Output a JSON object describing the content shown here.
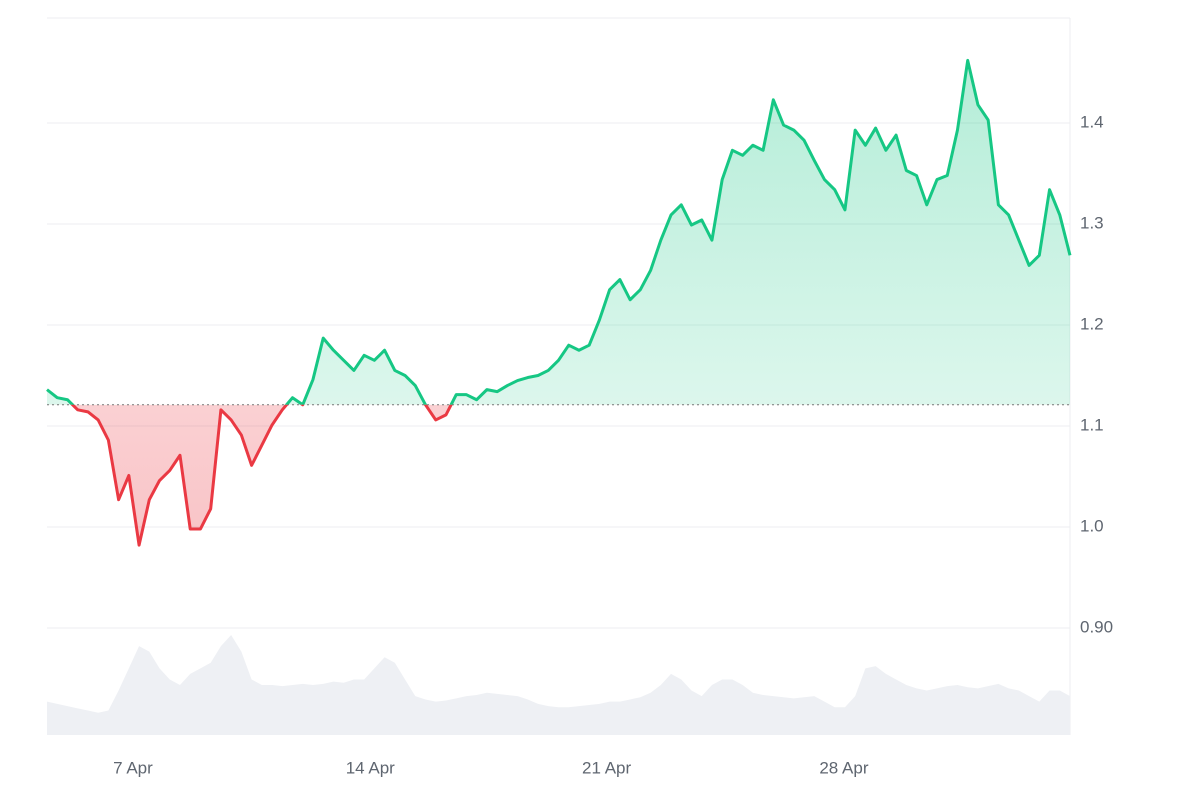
{
  "chart_data": {
    "type": "line",
    "xlim": [
      0,
      100
    ],
    "xticks": [
      {
        "value": 8.4,
        "label": "7 Apr"
      },
      {
        "value": 31.6,
        "label": "14 Apr"
      },
      {
        "value": 54.7,
        "label": "21 Apr"
      },
      {
        "value": 77.9,
        "label": "28 Apr"
      }
    ],
    "ylim": [
      0.794,
      1.504
    ],
    "yticks": [
      {
        "value": 0.9,
        "label": "0.90"
      },
      {
        "value": 1,
        "label": "1.0"
      },
      1.1,
      1.2,
      1.3,
      1.4
    ],
    "grid": true,
    "baseline": 1.121,
    "up_color": "#16c784",
    "down_color": "#ea3943",
    "values": [
      1.136,
      1.128,
      1.126,
      1.116,
      1.114,
      1.106,
      1.086,
      1.027,
      1.051,
      0.982,
      1.027,
      1.046,
      1.056,
      1.071,
      0.998,
      0.998,
      1.018,
      1.116,
      1.106,
      1.091,
      1.061,
      1.081,
      1.101,
      1.116,
      1.128,
      1.121,
      1.146,
      1.187,
      1.175,
      1.165,
      1.155,
      1.17,
      1.165,
      1.175,
      1.155,
      1.15,
      1.14,
      1.121,
      1.106,
      1.111,
      1.131,
      1.131,
      1.126,
      1.136,
      1.134,
      1.14,
      1.145,
      1.148,
      1.15,
      1.155,
      1.165,
      1.18,
      1.175,
      1.18,
      1.205,
      1.235,
      1.245,
      1.225,
      1.235,
      1.254,
      1.284,
      1.309,
      1.319,
      1.299,
      1.304,
      1.284,
      1.344,
      1.373,
      1.368,
      1.378,
      1.373,
      1.423,
      1.398,
      1.393,
      1.383,
      1.363,
      1.344,
      1.334,
      1.314,
      1.393,
      1.378,
      1.395,
      1.373,
      1.388,
      1.353,
      1.348,
      1.319,
      1.344,
      1.348,
      1.393,
      1.462,
      1.418,
      1.403,
      1.319,
      1.309,
      1.284,
      1.259,
      1.269,
      1.334,
      1.309,
      1.269
    ],
    "volume": {
      "color": "#eef0f4",
      "values": [
        30,
        28,
        26,
        24,
        22,
        20,
        22,
        40,
        60,
        80,
        75,
        60,
        50,
        45,
        55,
        60,
        65,
        80,
        90,
        75,
        50,
        45,
        45,
        44,
        45,
        46,
        45,
        46,
        48,
        47,
        50,
        50,
        60,
        70,
        65,
        50,
        35,
        32,
        30,
        31,
        33,
        35,
        36,
        38,
        37,
        36,
        35,
        32,
        28,
        26,
        25,
        25,
        26,
        27,
        28,
        30,
        30,
        32,
        34,
        38,
        45,
        55,
        50,
        40,
        35,
        45,
        50,
        50,
        45,
        38,
        36,
        35,
        34,
        33,
        34,
        35,
        30,
        25,
        25,
        35,
        60,
        62,
        55,
        50,
        45,
        42,
        40,
        42,
        44,
        45,
        43,
        42,
        44,
        46,
        42,
        40,
        35,
        30,
        40,
        40,
        35
      ]
    }
  }
}
